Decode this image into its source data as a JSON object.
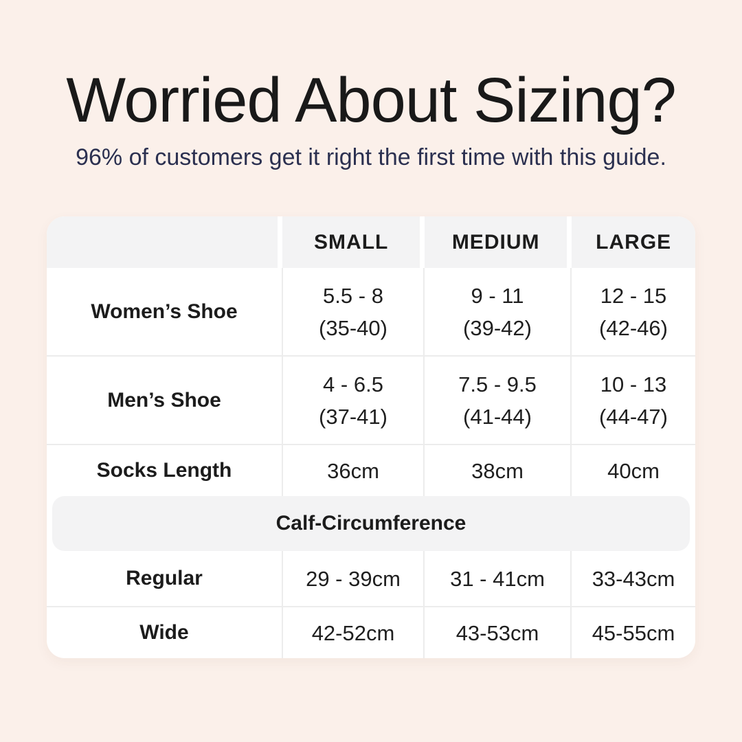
{
  "page": {
    "title": "Worried About Sizing?",
    "subtitle": "96% of customers get it right the first time with this guide."
  },
  "colors": {
    "bg": "#fbf0ea",
    "card": "#ffffff",
    "band": "#f3f3f4",
    "line": "#ececec",
    "title": "#191919",
    "subtitle": "#2b3050",
    "text": "#1f1f1f"
  },
  "table": {
    "headers": [
      "SMALL",
      "MEDIUM",
      "LARGE"
    ],
    "shoe_rows": [
      {
        "label": "Women’s Shoe",
        "cells": [
          {
            "l1": "5.5 - 8",
            "l2": "(35-40)"
          },
          {
            "l1": "9 - 11",
            "l2": "(39-42)"
          },
          {
            "l1": "12 - 15",
            "l2": "(42-46)"
          }
        ]
      },
      {
        "label": "Men’s Shoe",
        "cells": [
          {
            "l1": "4 - 6.5",
            "l2": "(37-41)"
          },
          {
            "l1": "7.5 - 9.5",
            "l2": "(41-44)"
          },
          {
            "l1": "10 - 13",
            "l2": "(44-47)"
          }
        ]
      }
    ],
    "socks_row": {
      "label": "Socks Length",
      "cells": [
        "36cm",
        "38cm",
        "40cm"
      ]
    },
    "section_label": "Calf-Circumference",
    "calf_rows": [
      {
        "label": "Regular",
        "cells": [
          "29 - 39cm",
          "31 - 41cm",
          "33-43cm"
        ]
      },
      {
        "label": "Wide",
        "cells": [
          "42-52cm",
          "43-53cm",
          "45-55cm"
        ]
      }
    ]
  },
  "chart_data": {
    "type": "table",
    "title": "Worried About Sizing?",
    "subtitle": "96% of customers get it right the first time with this guide.",
    "columns": [
      "",
      "SMALL",
      "MEDIUM",
      "LARGE"
    ],
    "rows": [
      [
        "Women’s Shoe",
        "5.5 - 8 (35-40)",
        "9 - 11 (39-42)",
        "12 - 15 (42-46)"
      ],
      [
        "Men’s Shoe",
        "4 - 6.5 (37-41)",
        "7.5 - 9.5 (41-44)",
        "10 - 13 (44-47)"
      ],
      [
        "Socks Length",
        "36cm",
        "38cm",
        "40cm"
      ],
      [
        "Calf-Circumference",
        "",
        "",
        ""
      ],
      [
        "Regular",
        "29 - 39cm",
        "31 - 41cm",
        "33-43cm"
      ],
      [
        "Wide",
        "42-52cm",
        "43-53cm",
        "45-55cm"
      ]
    ]
  }
}
